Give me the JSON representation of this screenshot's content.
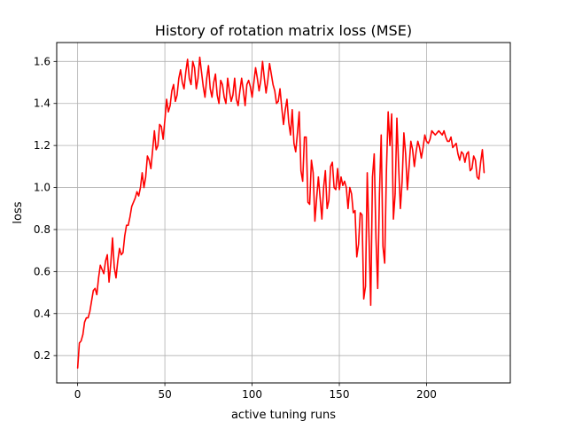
{
  "chart_data": {
    "type": "line",
    "title": "History of rotation matrix loss (MSE)",
    "xlabel": "active tuning runs",
    "ylabel": "loss",
    "xlim": [
      -12,
      248
    ],
    "ylim": [
      0.07,
      1.69
    ],
    "xticks": [
      0,
      50,
      100,
      150,
      200
    ],
    "yticks": [
      0.2,
      0.4,
      0.6,
      0.8,
      1.0,
      1.2,
      1.4,
      1.6
    ],
    "xtick_labels": [
      "0",
      "50",
      "100",
      "150",
      "200"
    ],
    "ytick_labels": [
      "0.2",
      "0.4",
      "0.6",
      "0.8",
      "1.0",
      "1.2",
      "1.4",
      "1.6"
    ],
    "grid": true,
    "series": [
      {
        "color": "#ff0000",
        "values": [
          0.14,
          0.26,
          0.27,
          0.3,
          0.36,
          0.38,
          0.38,
          0.41,
          0.46,
          0.51,
          0.52,
          0.49,
          0.57,
          0.63,
          0.61,
          0.59,
          0.65,
          0.68,
          0.55,
          0.64,
          0.76,
          0.62,
          0.57,
          0.65,
          0.71,
          0.68,
          0.69,
          0.77,
          0.82,
          0.82,
          0.86,
          0.91,
          0.93,
          0.95,
          0.98,
          0.96,
          1.0,
          1.07,
          1.0,
          1.05,
          1.15,
          1.13,
          1.09,
          1.18,
          1.27,
          1.18,
          1.2,
          1.3,
          1.29,
          1.23,
          1.32,
          1.42,
          1.36,
          1.39,
          1.46,
          1.49,
          1.41,
          1.44,
          1.52,
          1.56,
          1.5,
          1.47,
          1.55,
          1.61,
          1.52,
          1.49,
          1.6,
          1.57,
          1.47,
          1.52,
          1.62,
          1.55,
          1.48,
          1.43,
          1.52,
          1.58,
          1.47,
          1.43,
          1.5,
          1.54,
          1.44,
          1.4,
          1.51,
          1.49,
          1.43,
          1.4,
          1.52,
          1.46,
          1.41,
          1.44,
          1.52,
          1.42,
          1.39,
          1.46,
          1.52,
          1.46,
          1.39,
          1.49,
          1.51,
          1.48,
          1.43,
          1.5,
          1.57,
          1.52,
          1.46,
          1.51,
          1.6,
          1.52,
          1.45,
          1.51,
          1.59,
          1.54,
          1.49,
          1.46,
          1.4,
          1.41,
          1.47,
          1.38,
          1.3,
          1.37,
          1.42,
          1.31,
          1.25,
          1.37,
          1.21,
          1.17,
          1.26,
          1.36,
          1.08,
          1.03,
          1.24,
          1.24,
          0.93,
          0.92,
          1.13,
          1.07,
          0.84,
          0.95,
          1.05,
          0.95,
          0.85,
          1.0,
          1.08,
          0.9,
          0.94,
          1.1,
          1.12,
          1.0,
          0.99,
          1.09,
          0.99,
          1.05,
          1.01,
          1.03,
          1.0,
          0.9,
          1.0,
          0.97,
          0.88,
          0.89,
          0.67,
          0.73,
          0.88,
          0.87,
          0.47,
          0.53,
          1.07,
          0.77,
          0.44,
          1.05,
          1.16,
          0.76,
          0.52,
          0.97,
          1.25,
          0.72,
          0.64,
          1.08,
          1.36,
          1.2,
          1.35,
          0.85,
          0.97,
          1.33,
          1.1,
          0.9,
          1.03,
          1.26,
          1.16,
          0.99,
          1.1,
          1.22,
          1.18,
          1.1,
          1.17,
          1.22,
          1.19,
          1.14,
          1.19,
          1.25,
          1.22,
          1.21,
          1.23,
          1.27,
          1.26,
          1.25,
          1.26,
          1.27,
          1.26,
          1.25,
          1.27,
          1.24,
          1.22,
          1.22,
          1.24,
          1.19,
          1.2,
          1.21,
          1.16,
          1.13,
          1.17,
          1.16,
          1.12,
          1.16,
          1.17,
          1.08,
          1.09,
          1.15,
          1.13,
          1.05,
          1.04,
          1.12,
          1.18,
          1.07
        ]
      }
    ]
  }
}
